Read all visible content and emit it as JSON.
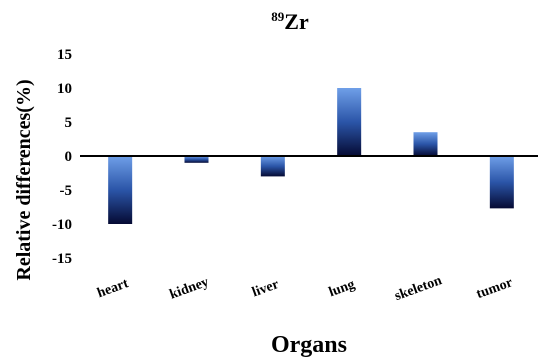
{
  "chart_data": {
    "type": "bar",
    "title_superscript": "89",
    "title_main": "Zr",
    "xlabel": "Organs",
    "ylabel": "Relative differences(%)",
    "categories": [
      "heart",
      "kidney",
      "liver",
      "lung",
      "skeleton",
      "tumor"
    ],
    "values": [
      -10,
      -1,
      -3,
      10,
      3.5,
      -7.7
    ],
    "ylim": [
      -15,
      15
    ],
    "yticks": [
      15,
      10,
      5,
      0,
      -5,
      -10,
      -15
    ],
    "ytick_labels": [
      "15",
      "10",
      "5",
      "0",
      "-5",
      "-10",
      "-15"
    ],
    "grid": false,
    "legend": "none",
    "colors": {
      "bar_top": "#6f9fe8",
      "bar_mid": "#2b55a8",
      "bar_bottom": "#050a33",
      "axis": "#000000"
    }
  }
}
